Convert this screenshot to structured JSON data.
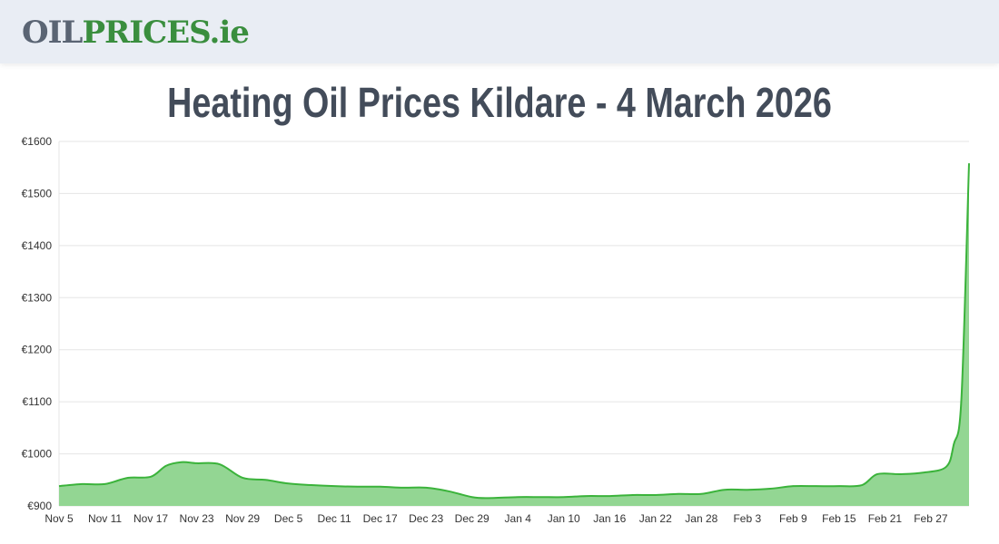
{
  "header": {
    "logo_part1": "OIL",
    "logo_part2": "PRICES.ie"
  },
  "page_title": "Heating Oil Prices Kildare - 4 March 2026",
  "colors": {
    "line": "#3bb33b",
    "fill": "#93d693",
    "grid": "#e5e5e5"
  },
  "chart_data": {
    "type": "area",
    "title": "Heating Oil Prices Kildare - 4 March 2026",
    "ylim": [
      900,
      1600
    ],
    "y_ticks": [
      "€900",
      "€1000",
      "€1100",
      "€1200",
      "€1300",
      "€1400",
      "€1500",
      "€1600"
    ],
    "x_ticks": [
      "Nov 5",
      "Nov 11",
      "Nov 17",
      "Nov 23",
      "Nov 29",
      "Dec 5",
      "Dec 11",
      "Dec 17",
      "Dec 23",
      "Dec 29",
      "Jan 4",
      "Jan 10",
      "Jan 16",
      "Jan 22",
      "Jan 28",
      "Feb 3",
      "Feb 9",
      "Feb 15",
      "Feb 21",
      "Feb 27"
    ],
    "grid": true,
    "points": [
      [
        "Nov 5",
        938
      ],
      [
        "Nov 8",
        942
      ],
      [
        "Nov 11",
        942
      ],
      [
        "Nov 14",
        954
      ],
      [
        "Nov 17",
        956
      ],
      [
        "Nov 19",
        977
      ],
      [
        "Nov 21",
        984
      ],
      [
        "Nov 23",
        982
      ],
      [
        "Nov 26",
        980
      ],
      [
        "Nov 29",
        954
      ],
      [
        "Dec 2",
        950
      ],
      [
        "Dec 5",
        943
      ],
      [
        "Dec 8",
        940
      ],
      [
        "Dec 11",
        938
      ],
      [
        "Dec 14",
        937
      ],
      [
        "Dec 17",
        937
      ],
      [
        "Dec 20",
        935
      ],
      [
        "Dec 23",
        935
      ],
      [
        "Dec 26",
        928
      ],
      [
        "Dec 29",
        917
      ],
      [
        "Dec 31",
        915
      ],
      [
        "Jan 4",
        917
      ],
      [
        "Jan 7",
        917
      ],
      [
        "Jan 10",
        917
      ],
      [
        "Jan 13",
        919
      ],
      [
        "Jan 16",
        919
      ],
      [
        "Jan 19",
        921
      ],
      [
        "Jan 22",
        921
      ],
      [
        "Jan 25",
        923
      ],
      [
        "Jan 28",
        923
      ],
      [
        "Jan 31",
        931
      ],
      [
        "Feb 3",
        931
      ],
      [
        "Feb 6",
        933
      ],
      [
        "Feb 9",
        938
      ],
      [
        "Feb 12",
        938
      ],
      [
        "Feb 15",
        938
      ],
      [
        "Feb 18",
        940
      ],
      [
        "Feb 20",
        961
      ],
      [
        "Feb 23",
        961
      ],
      [
        "Feb 26",
        964
      ],
      [
        "Mar 1",
        975
      ],
      [
        "Mar 2",
        1018
      ],
      [
        "Mar 3",
        1105
      ],
      [
        "Mar 4",
        1558
      ]
    ]
  }
}
